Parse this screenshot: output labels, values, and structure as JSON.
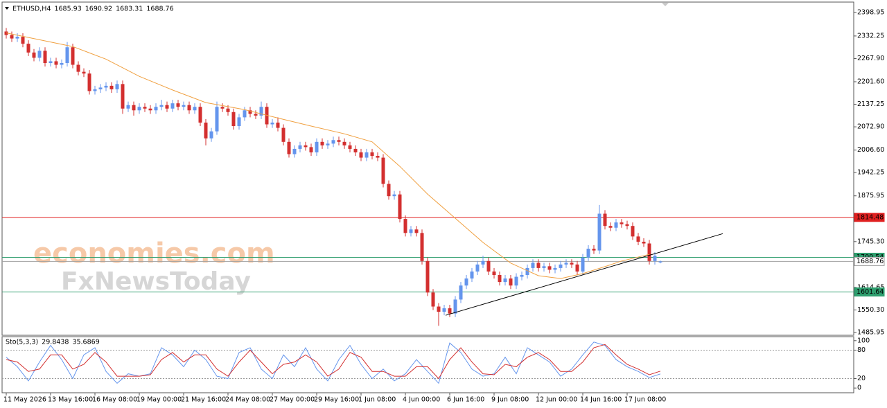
{
  "chart_data": [
    {
      "type": "candlestick",
      "title": "ETHUSD,H4",
      "header_values": [
        1685.93,
        1690.92,
        1683.31,
        1688.76
      ],
      "up_color": "#6495ed",
      "down_color": "#d32f2f",
      "xlim": [
        -0.75,
        152.875
      ],
      "ylim": [
        1480,
        2425
      ],
      "yticks": [
        2398.95,
        2332.25,
        {
          "value": 2267.9,
          "label": "2267.90"
        },
        {
          "value": 2201.6,
          "label": "2201.60"
        },
        2137.25,
        {
          "value": 2072.9,
          "label": "2072.90"
        },
        {
          "value": 2006.6,
          "label": "2006.60"
        },
        1942.25,
        1875.95,
        {
          "value": 1745.3,
          "label": "1745.30"
        },
        1614.65,
        {
          "value": 1550.3,
          "label": "1550.30"
        },
        1485.95
      ],
      "ohlc": [
        [
          2345,
          2355,
          2325,
          2335
        ],
        [
          2335,
          2345,
          2315,
          2325
        ],
        [
          2325,
          2340,
          2315,
          2330
        ],
        [
          2330,
          2340,
          2300,
          2310
        ],
        [
          2310,
          2320,
          2275,
          2285
        ],
        [
          2285,
          2295,
          2260,
          2270
        ],
        [
          2270,
          2300,
          2260,
          2290
        ],
        [
          2290,
          2300,
          2245,
          2255
        ],
        [
          2255,
          2270,
          2245,
          2260
        ],
        [
          2260,
          2270,
          2240,
          2250
        ],
        [
          2250,
          2265,
          2240,
          2255
        ],
        [
          2255,
          2315,
          2245,
          2300
        ],
        [
          2300,
          2310,
          2240,
          2250
        ],
        [
          2250,
          2260,
          2220,
          2230
        ],
        [
          2230,
          2240,
          2215,
          2225
        ],
        [
          2225,
          2235,
          2165,
          2175
        ],
        [
          2175,
          2190,
          2165,
          2180
        ],
        [
          2180,
          2195,
          2170,
          2185
        ],
        [
          2185,
          2200,
          2175,
          2190
        ],
        [
          2190,
          2200,
          2170,
          2180
        ],
        [
          2180,
          2205,
          2170,
          2195
        ],
        [
          2195,
          2205,
          2110,
          2125
        ],
        [
          2125,
          2145,
          2115,
          2135
        ],
        [
          2135,
          2145,
          2105,
          2120
        ],
        [
          2120,
          2140,
          2110,
          2130
        ],
        [
          2130,
          2140,
          2115,
          2125
        ],
        [
          2125,
          2135,
          2110,
          2120
        ],
        [
          2120,
          2140,
          2110,
          2130
        ],
        [
          2130,
          2150,
          2120,
          2135
        ],
        [
          2135,
          2145,
          2115,
          2125
        ],
        [
          2125,
          2150,
          2115,
          2140
        ],
        [
          2140,
          2150,
          2120,
          2130
        ],
        [
          2130,
          2145,
          2120,
          2135
        ],
        [
          2135,
          2145,
          2110,
          2120
        ],
        [
          2120,
          2140,
          2110,
          2130
        ],
        [
          2130,
          2140,
          2075,
          2085
        ],
        [
          2085,
          2095,
          2020,
          2040
        ],
        [
          2040,
          2070,
          2030,
          2060
        ],
        [
          2060,
          2145,
          2050,
          2130
        ],
        [
          2130,
          2140,
          2115,
          2125
        ],
        [
          2125,
          2135,
          2105,
          2115
        ],
        [
          2115,
          2125,
          2065,
          2075
        ],
        [
          2075,
          2110,
          2065,
          2100
        ],
        [
          2100,
          2130,
          2090,
          2120
        ],
        [
          2120,
          2130,
          2100,
          2110
        ],
        [
          2110,
          2120,
          2095,
          2105
        ],
        [
          2105,
          2145,
          2095,
          2130
        ],
        [
          2130,
          2140,
          2070,
          2080
        ],
        [
          2080,
          2095,
          2070,
          2085
        ],
        [
          2085,
          2100,
          2060,
          2070
        ],
        [
          2070,
          2080,
          2020,
          2030
        ],
        [
          2030,
          2040,
          1985,
          1995
        ],
        [
          1995,
          2020,
          1985,
          2010
        ],
        [
          2010,
          2030,
          2000,
          2020
        ],
        [
          2020,
          2030,
          2005,
          2015
        ],
        [
          2015,
          2025,
          1990,
          2000
        ],
        [
          2000,
          2040,
          1990,
          2030
        ],
        [
          2030,
          2040,
          2010,
          2020
        ],
        [
          2020,
          2035,
          2010,
          2025
        ],
        [
          2025,
          2045,
          2015,
          2035
        ],
        [
          2035,
          2045,
          2020,
          2030
        ],
        [
          2030,
          2040,
          2010,
          2020
        ],
        [
          2020,
          2030,
          2000,
          2010
        ],
        [
          2010,
          2020,
          1990,
          2000
        ],
        [
          2000,
          2010,
          1975,
          1985
        ],
        [
          1985,
          2010,
          1975,
          2000
        ],
        [
          2000,
          2010,
          1980,
          1990
        ],
        [
          1990,
          2000,
          1975,
          1985
        ],
        [
          1985,
          1995,
          1900,
          1910
        ],
        [
          1910,
          1920,
          1865,
          1875
        ],
        [
          1875,
          1890,
          1865,
          1880
        ],
        [
          1880,
          1890,
          1800,
          1810
        ],
        [
          1810,
          1820,
          1760,
          1770
        ],
        [
          1770,
          1790,
          1760,
          1780
        ],
        [
          1780,
          1790,
          1760,
          1770
        ],
        [
          1770,
          1780,
          1680,
          1690
        ],
        [
          1690,
          1700,
          1590,
          1600
        ],
        [
          1600,
          1610,
          1550,
          1560
        ],
        [
          1560,
          1570,
          1505,
          1545
        ],
        [
          1545,
          1565,
          1535,
          1555
        ],
        [
          1555,
          1565,
          1530,
          1540
        ],
        [
          1540,
          1590,
          1530,
          1580
        ],
        [
          1580,
          1630,
          1570,
          1620
        ],
        [
          1620,
          1650,
          1610,
          1640
        ],
        [
          1640,
          1670,
          1630,
          1660
        ],
        [
          1660,
          1690,
          1650,
          1680
        ],
        [
          1680,
          1705,
          1670,
          1690
        ],
        [
          1690,
          1700,
          1650,
          1660
        ],
        [
          1660,
          1670,
          1640,
          1650
        ],
        [
          1650,
          1660,
          1620,
          1630
        ],
        [
          1630,
          1650,
          1620,
          1640
        ],
        [
          1640,
          1650,
          1610,
          1620
        ],
        [
          1620,
          1655,
          1610,
          1645
        ],
        [
          1645,
          1660,
          1635,
          1650
        ],
        [
          1650,
          1680,
          1640,
          1670
        ],
        [
          1670,
          1695,
          1660,
          1685
        ],
        [
          1685,
          1695,
          1660,
          1670
        ],
        [
          1670,
          1685,
          1660,
          1675
        ],
        [
          1675,
          1685,
          1655,
          1665
        ],
        [
          1665,
          1680,
          1655,
          1670
        ],
        [
          1670,
          1690,
          1660,
          1680
        ],
        [
          1680,
          1695,
          1670,
          1685
        ],
        [
          1685,
          1695,
          1670,
          1680
        ],
        [
          1680,
          1690,
          1650,
          1660
        ],
        [
          1660,
          1710,
          1650,
          1700
        ],
        [
          1700,
          1735,
          1690,
          1725
        ],
        [
          1725,
          1735,
          1710,
          1720
        ],
        [
          1720,
          1850,
          1710,
          1825
        ],
        [
          1825,
          1835,
          1780,
          1790
        ],
        [
          1790,
          1800,
          1775,
          1785
        ],
        [
          1785,
          1810,
          1775,
          1800
        ],
        [
          1800,
          1810,
          1785,
          1795
        ],
        [
          1795,
          1805,
          1780,
          1790
        ],
        [
          1790,
          1800,
          1750,
          1760
        ],
        [
          1760,
          1770,
          1735,
          1745
        ],
        [
          1745,
          1755,
          1730,
          1740
        ],
        [
          1740,
          1750,
          1680,
          1690
        ],
        [
          1690,
          1715,
          1680,
          1705
        ],
        [
          1685.93,
          1690.92,
          1683.31,
          1688.76
        ]
      ],
      "ma": {
        "color": "#f0a040",
        "x": [
          0,
          12,
          18,
          24,
          30,
          36,
          43,
          49,
          55,
          61,
          66,
          71,
          76,
          81,
          86,
          91,
          96,
          100,
          104,
          108,
          111,
          116
        ],
        "values": [
          2341,
          2302,
          2266,
          2217,
          2178,
          2142,
          2122,
          2098,
          2075,
          2053,
          2030,
          1960,
          1881,
          1812,
          1743,
          1684,
          1648,
          1640,
          1654,
          1674,
          1690,
          1709
        ]
      },
      "trendline": {
        "color": "#000000",
        "x": [
          79.25,
          129.25
        ],
        "values": [
          1535,
          1768
        ]
      },
      "levels": [
        {
          "value": 1814.48,
          "color": "#e02020",
          "text_color": "#ffffff"
        },
        {
          "value": 1700.54,
          "color": "#2e9e6e",
          "text_color": "#ffffff"
        },
        {
          "value": 1688.76,
          "color": "#a0a0a0",
          "text_color": "#000000"
        },
        {
          "value": 1601.64,
          "color": "#2e9e6e",
          "text_color": "#ffffff"
        }
      ]
    },
    {
      "type": "line",
      "title": "Sto(5,3,3)",
      "header_values": [
        29.8438,
        35.6869
      ],
      "xlim": [
        -0.75,
        152.875
      ],
      "ylim": [
        -10,
        107
      ],
      "yticks": [
        100,
        80,
        20,
        0
      ],
      "dotted_levels": [
        80,
        20
      ],
      "xticks": [
        {
          "value": 0,
          "label": "11 May 2026"
        },
        {
          "value": 8,
          "label": "13 May 16:00"
        },
        {
          "value": 16,
          "label": "16 May 08:00"
        },
        {
          "value": 24,
          "label": "19 May 00:00"
        },
        {
          "value": 32,
          "label": "21 May 16:00"
        },
        {
          "value": 40,
          "label": "24 May 08:00"
        },
        {
          "value": 48,
          "label": "27 May 00:00"
        },
        {
          "value": 56,
          "label": "29 May 16:00"
        },
        {
          "value": 64,
          "label": "1 Jun 08:00"
        },
        {
          "value": 72,
          "label": "4 Jun 00:00"
        },
        {
          "value": 80,
          "label": "6 Jun 16:00"
        },
        {
          "value": 88,
          "label": "9 Jun 08:00"
        },
        {
          "value": 96,
          "label": "12 Jun 00:00"
        },
        {
          "value": 104,
          "label": "14 Jun 16:00"
        },
        {
          "value": 112,
          "label": "17 Jun 08:00"
        }
      ],
      "x": [
        0,
        2,
        4,
        6,
        8,
        10,
        12,
        14,
        16,
        18,
        20,
        22,
        24,
        26,
        28,
        30,
        32,
        34,
        36,
        38,
        40,
        42,
        44,
        46,
        48,
        50,
        52,
        54,
        56,
        58,
        60,
        62,
        64,
        66,
        68,
        70,
        72,
        74,
        76,
        78,
        80,
        82,
        84,
        86,
        88,
        90,
        92,
        94,
        96,
        98,
        100,
        102,
        104,
        106,
        108,
        110,
        112,
        114,
        116,
        118
      ],
      "series": [
        {
          "color": "#6495ed",
          "values": [
            65,
            45,
            15,
            55,
            90,
            60,
            20,
            70,
            85,
            35,
            10,
            30,
            25,
            30,
            85,
            70,
            45,
            80,
            60,
            25,
            20,
            75,
            85,
            40,
            20,
            70,
            45,
            85,
            40,
            15,
            60,
            90,
            50,
            20,
            40,
            15,
            30,
            60,
            35,
            10,
            95,
            75,
            40,
            25,
            30,
            65,
            30,
            85,
            70,
            55,
            25,
            40,
            70,
            97,
            90,
            60,
            45,
            35,
            22,
            29.8438
          ]
        },
        {
          "color": "#d32f2f",
          "values": [
            60,
            55,
            35,
            40,
            70,
            70,
            40,
            50,
            75,
            55,
            25,
            25,
            25,
            28,
            60,
            75,
            55,
            70,
            70,
            40,
            25,
            55,
            80,
            55,
            30,
            50,
            55,
            70,
            55,
            25,
            40,
            75,
            65,
            35,
            35,
            25,
            25,
            45,
            45,
            20,
            60,
            85,
            55,
            30,
            28,
            50,
            45,
            65,
            75,
            60,
            35,
            35,
            55,
            85,
            92,
            70,
            50,
            40,
            28,
            35.6869
          ]
        }
      ]
    }
  ],
  "watermark": [
    "economies.com",
    "FxNewsToday"
  ]
}
